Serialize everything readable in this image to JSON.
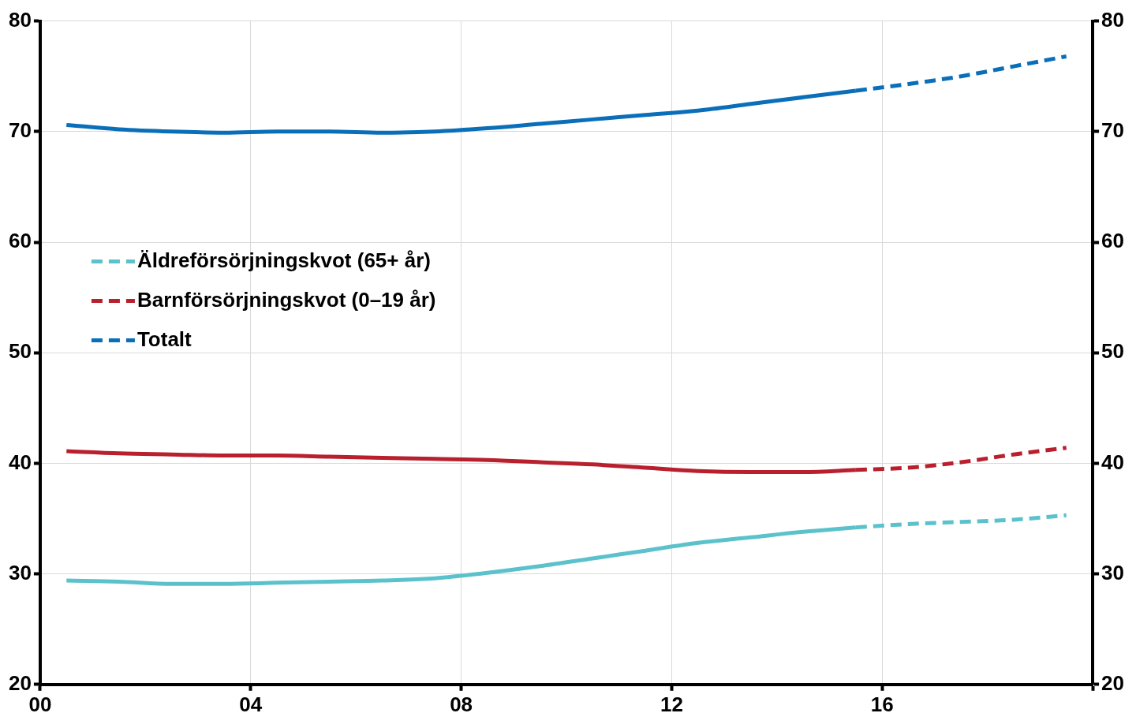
{
  "chart_data": {
    "type": "line",
    "x": [
      0.5,
      1.5,
      2.5,
      3.5,
      4.5,
      5.5,
      6.5,
      7.5,
      8.5,
      9.5,
      10.5,
      11.5,
      12.5,
      13.5,
      14.5,
      15.5,
      16.5,
      17.5,
      18.5,
      19.5
    ],
    "series": [
      {
        "color": "#5bc2cc",
        "line_style": "solid",
        "values": [
          29.4,
          29.3,
          29.1,
          29.1,
          29.2,
          29.3,
          29.4,
          29.6,
          30.1,
          30.7,
          31.4,
          32.1,
          32.8,
          33.3,
          33.8,
          34.2,
          null,
          null,
          null,
          null
        ]
      },
      {
        "name": "Äldreförsörjningskvot (65+ år)",
        "color": "#5bc2cc",
        "line_style": "dashed",
        "values": [
          null,
          null,
          null,
          null,
          null,
          null,
          null,
          null,
          null,
          null,
          null,
          null,
          null,
          null,
          null,
          34.2,
          34.5,
          34.7,
          34.9,
          35.3
        ]
      },
      {
        "color": "#b8202e",
        "line_style": "solid",
        "values": [
          41.1,
          40.9,
          40.8,
          40.7,
          40.7,
          40.6,
          40.5,
          40.4,
          40.3,
          40.1,
          39.9,
          39.6,
          39.3,
          39.2,
          39.2,
          39.4,
          null,
          null,
          null,
          null
        ]
      },
      {
        "name": "Barnförsörjningskvot (0–19 år)",
        "color": "#b8202e",
        "line_style": "dashed",
        "values": [
          null,
          null,
          null,
          null,
          null,
          null,
          null,
          null,
          null,
          null,
          null,
          null,
          null,
          null,
          null,
          39.4,
          39.6,
          40.1,
          40.8,
          41.4
        ]
      },
      {
        "color": "#0a6fb8",
        "line_style": "solid",
        "values": [
          70.6,
          70.2,
          70.0,
          69.9,
          70.0,
          70.0,
          69.9,
          70.0,
          70.3,
          70.7,
          71.1,
          71.5,
          71.9,
          72.5,
          73.1,
          73.7,
          null,
          null,
          null,
          null
        ]
      },
      {
        "name": "Totalt",
        "color": "#0a6fb8",
        "line_style": "dashed",
        "values": [
          null,
          null,
          null,
          null,
          null,
          null,
          null,
          null,
          null,
          null,
          null,
          null,
          null,
          null,
          null,
          73.7,
          74.3,
          75.0,
          75.9,
          76.8
        ]
      }
    ],
    "xlim": [
      0,
      20
    ],
    "xticks": [
      {
        "value": 0,
        "label": "00"
      },
      {
        "value": 4,
        "label": "04"
      },
      {
        "value": 8,
        "label": "08"
      },
      {
        "value": 12,
        "label": "12"
      },
      {
        "value": 16,
        "label": "16"
      },
      {
        "value": 20,
        "label": null
      }
    ],
    "ylim": [
      20,
      80
    ],
    "yticks": [
      20,
      30,
      40,
      50,
      60,
      70,
      80
    ],
    "y2lim": [
      20,
      80
    ],
    "y2ticks": [
      20,
      30,
      40,
      50,
      60,
      70,
      80
    ],
    "grid": true,
    "legend": "top left",
    "marker": "none"
  }
}
